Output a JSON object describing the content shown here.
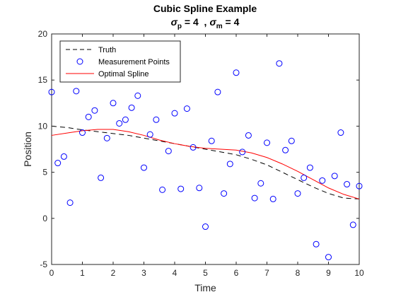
{
  "chart_data": {
    "type": "scatter",
    "title": "Cubic Spline Example",
    "subtitle": {
      "sigma_symbol": "σ",
      "p_subscript": "p",
      "p_value_text": " = 4  ,",
      "m_subscript": "m",
      "m_value_text": " = 4"
    },
    "xlabel": "Time",
    "ylabel": "Position",
    "xlim": [
      0,
      10
    ],
    "ylim": [
      -5,
      20
    ],
    "xticks": [
      0,
      1,
      2,
      3,
      4,
      5,
      6,
      7,
      8,
      9,
      10
    ],
    "yticks": [
      -5,
      0,
      5,
      10,
      15,
      20
    ],
    "grid": false,
    "legend_position": "top-left",
    "series": [
      {
        "name": "Truth",
        "kind": "line",
        "style": "dashed",
        "color": "#000000",
        "x": [
          0,
          0.5,
          1,
          1.5,
          2,
          2.5,
          3,
          3.5,
          4,
          4.5,
          5,
          5.5,
          6,
          6.5,
          7,
          7.5,
          8,
          8.5,
          9,
          9.5,
          10
        ],
        "y": [
          10.0,
          9.85,
          9.6,
          9.4,
          9.2,
          9.0,
          8.7,
          8.4,
          8.1,
          7.8,
          7.5,
          7.2,
          6.9,
          6.4,
          5.8,
          5.0,
          4.2,
          3.4,
          2.7,
          2.2,
          2.1
        ]
      },
      {
        "name": "Measurement Points",
        "kind": "scatter",
        "marker": "circle",
        "color": "#0000ff",
        "x": [
          0,
          0.2,
          0.4,
          0.6,
          0.8,
          1.0,
          1.2,
          1.4,
          1.6,
          1.8,
          2.0,
          2.2,
          2.4,
          2.6,
          2.8,
          3.0,
          3.2,
          3.4,
          3.6,
          3.8,
          4.0,
          4.2,
          4.4,
          4.6,
          4.8,
          5.0,
          5.2,
          5.4,
          5.6,
          5.8,
          6.0,
          6.2,
          6.4,
          6.6,
          6.8,
          7.0,
          7.2,
          7.4,
          7.6,
          7.8,
          8.0,
          8.2,
          8.4,
          8.6,
          8.8,
          9.0,
          9.2,
          9.4,
          9.6,
          9.8,
          10.0
        ],
        "y": [
          13.7,
          6.0,
          6.7,
          1.7,
          13.8,
          9.3,
          11.0,
          11.7,
          4.4,
          8.7,
          12.5,
          10.3,
          10.7,
          12.0,
          13.3,
          5.5,
          9.1,
          10.7,
          3.1,
          7.3,
          11.4,
          3.2,
          11.9,
          7.7,
          3.3,
          -0.9,
          8.4,
          13.7,
          2.7,
          5.9,
          15.8,
          7.2,
          9.0,
          2.2,
          3.8,
          8.2,
          2.1,
          16.8,
          7.4,
          8.4,
          2.7,
          4.4,
          5.5,
          -2.8,
          4.1,
          -4.2,
          4.6,
          9.3,
          3.7,
          -0.7,
          3.5
        ]
      },
      {
        "name": "Optimal Spline",
        "kind": "line",
        "style": "solid",
        "color": "#ff0000",
        "x": [
          0,
          0.5,
          1,
          1.5,
          2,
          2.5,
          3,
          3.5,
          4,
          4.5,
          5,
          5.5,
          6,
          6.5,
          7,
          7.5,
          8,
          8.5,
          9,
          9.5,
          10
        ],
        "y": [
          9.0,
          9.25,
          9.5,
          9.65,
          9.65,
          9.4,
          9.0,
          8.5,
          8.1,
          7.8,
          7.6,
          7.5,
          7.4,
          7.1,
          6.6,
          5.9,
          5.1,
          4.2,
          3.3,
          2.6,
          2.1
        ]
      }
    ]
  }
}
